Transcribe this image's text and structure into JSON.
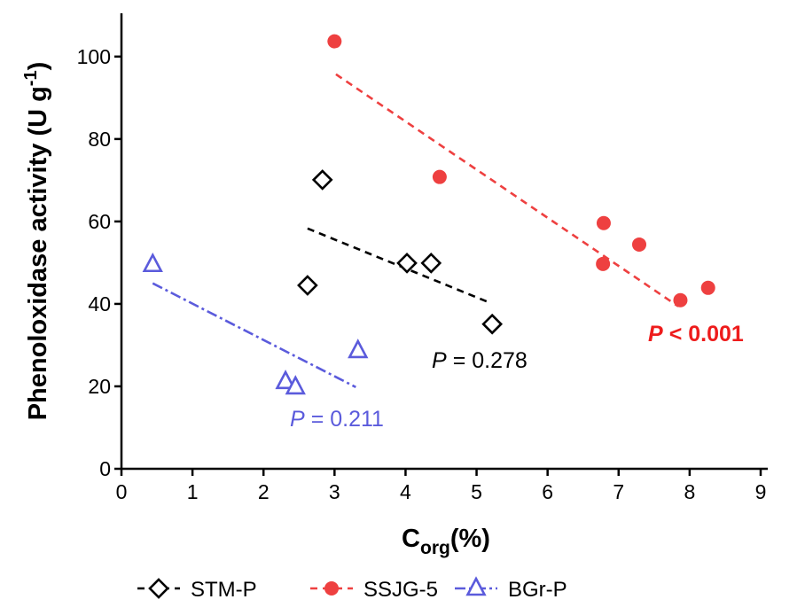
{
  "chart_data": {
    "type": "scatter",
    "x_label": {
      "text": "C",
      "sub": "org",
      "end": "(%)"
    },
    "y_label": {
      "text": "Phenoloxidase activity (U g",
      "sup": "-1",
      "end": ")"
    },
    "xlim": [
      0,
      9.1
    ],
    "ylim": [
      0,
      110.5
    ],
    "xticks": [
      0,
      1,
      2,
      3,
      4,
      5,
      6,
      7,
      8,
      9
    ],
    "yticks": [
      0,
      20,
      40,
      60,
      80,
      100
    ],
    "series": [
      {
        "name": "STM-P",
        "color": "#000000",
        "marker": "diamond",
        "line_style": "dashed",
        "x": [
          2.83,
          2.62,
          4.02,
          4.36,
          5.22
        ],
        "y": [
          70.1,
          44.5,
          49.9,
          49.9,
          35.1
        ],
        "fit": {
          "x": [
            2.62,
            5.17
          ],
          "y": [
            58.3,
            40.4
          ]
        }
      },
      {
        "name": "SSJG-5",
        "color": "#ee4040",
        "marker": "circle",
        "line_style": "dashed",
        "x": [
          3.0,
          4.48,
          6.79,
          6.78,
          7.29,
          7.87,
          8.26
        ],
        "y": [
          103.7,
          70.8,
          59.6,
          49.7,
          54.4,
          40.9,
          43.9
        ],
        "fit": {
          "x": [
            3.02,
            7.84
          ],
          "y": [
            95.7,
            39.4
          ]
        }
      },
      {
        "name": "BGr-P",
        "color": "#5b5bdc",
        "marker": "triangle",
        "line_style": "dash-dot",
        "x": [
          0.44,
          2.31,
          2.45,
          3.33
        ],
        "y": [
          49.5,
          21.1,
          19.8,
          28.6
        ],
        "fit": {
          "x": [
            0.44,
            3.3
          ],
          "y": [
            45.0,
            19.8
          ]
        }
      }
    ],
    "annotations": [
      {
        "italic": "P",
        "text": "= 0.278",
        "color": "#000000",
        "bold": false
      },
      {
        "italic": "P",
        "text": "= 0.211",
        "color": "#5b5bdc",
        "bold": false
      },
      {
        "italic": "P",
        "text": "< 0.001",
        "color": "#ee1c1c",
        "bold": true
      }
    ]
  }
}
